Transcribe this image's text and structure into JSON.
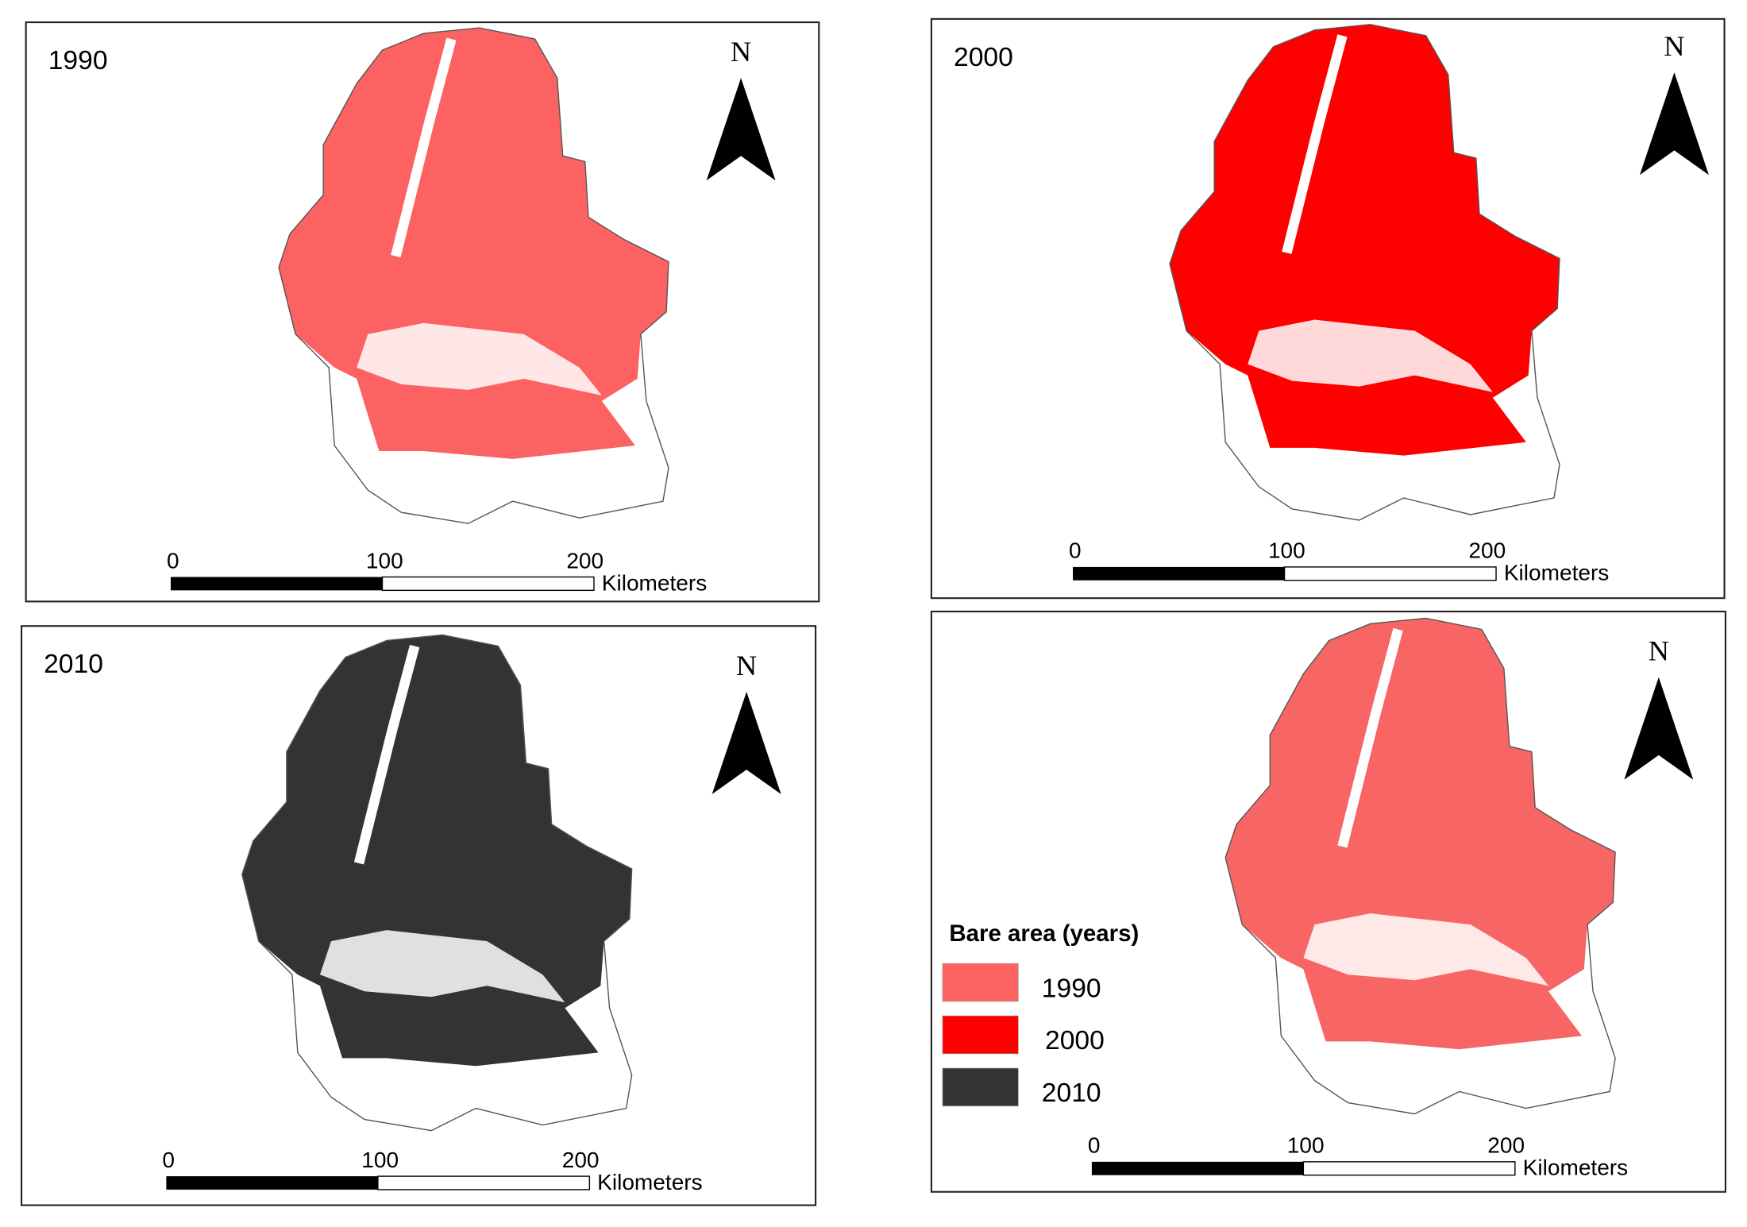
{
  "panels": [
    {
      "title": "1990",
      "north": "N",
      "fill": "#fd6262",
      "scale": {
        "ticks": [
          "0",
          "100",
          "200"
        ],
        "unit": "Kilometers"
      }
    },
    {
      "title": "2000",
      "north": "N",
      "fill": "#fe0000",
      "scale": {
        "ticks": [
          "0",
          "100",
          "200"
        ],
        "unit": "Kilometers"
      }
    },
    {
      "title": "2010",
      "north": "N",
      "fill": "#333333",
      "scale": {
        "ticks": [
          "0",
          "100",
          "200"
        ],
        "unit": "Kilometers"
      }
    },
    {
      "north": "N",
      "fill": "#f86565",
      "scale": {
        "ticks": [
          "0",
          "100",
          "200"
        ],
        "unit": "Kilometers"
      }
    }
  ],
  "legend": {
    "title": "Bare area (years)",
    "items": [
      {
        "label": "1990",
        "color": "#fd6262"
      },
      {
        "label": "2000",
        "color": "#fe0000"
      },
      {
        "label": "2010",
        "color": "#333333"
      }
    ]
  }
}
